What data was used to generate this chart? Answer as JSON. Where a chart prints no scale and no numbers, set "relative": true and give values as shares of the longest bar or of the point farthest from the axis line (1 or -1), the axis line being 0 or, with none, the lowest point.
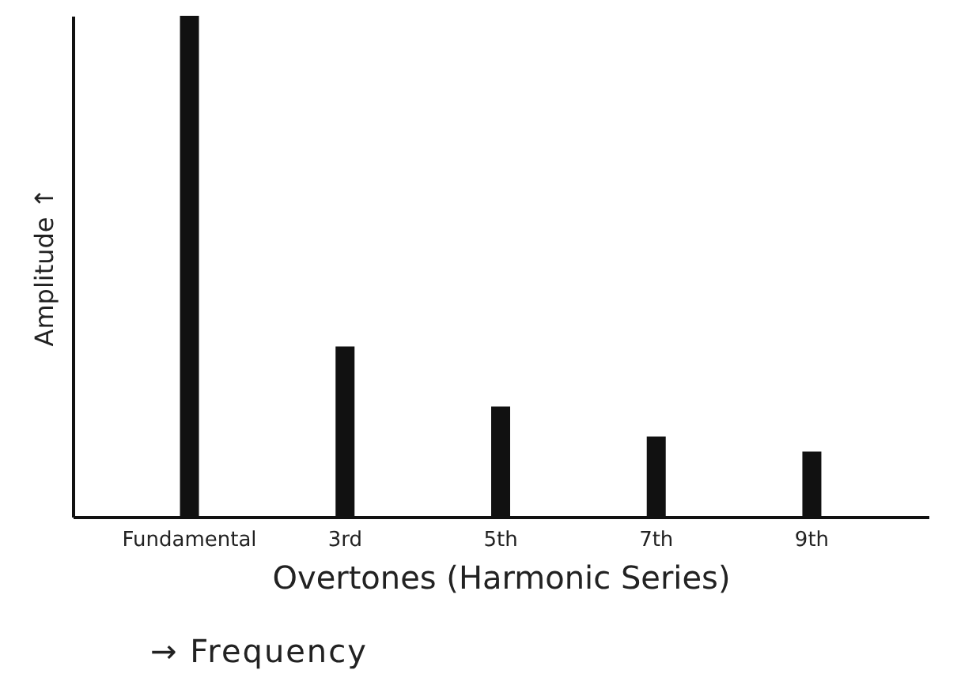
{
  "chart_data": {
    "type": "bar",
    "relative": true,
    "categories": [
      "Fundamental",
      "3rd",
      "5th",
      "7th",
      "9th"
    ],
    "values": [
      1,
      0.34,
      0.22,
      0.16,
      0.13
    ],
    "color": "#111111",
    "xlabel": "Overtones (Harmonic Series)",
    "ylabel": "Amplitude ↑",
    "annotations": [
      "→ Frequency"
    ],
    "grid": false
  }
}
